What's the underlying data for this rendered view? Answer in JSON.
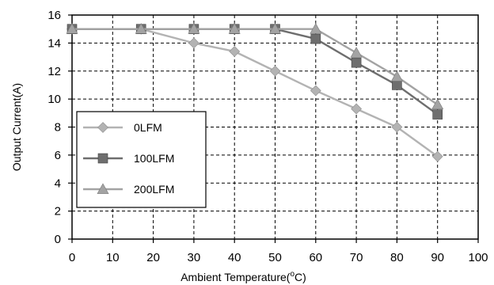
{
  "chart_data": {
    "type": "line",
    "xlabel": "Ambient Temperature(",
    "xlabel_sup": "o",
    "xlabel_suffix": "C)",
    "ylabel": "Output Current(A)",
    "xlim": [
      0,
      100
    ],
    "ylim": [
      0,
      16
    ],
    "x_ticks": [
      0,
      10,
      20,
      30,
      40,
      50,
      60,
      70,
      80,
      90,
      100
    ],
    "y_ticks": [
      0,
      2,
      4,
      6,
      8,
      10,
      12,
      14,
      16
    ],
    "grid": true,
    "grid_style": "dashed",
    "legend_position": "bottom-left",
    "series": [
      {
        "name": "0LFM",
        "marker": "diamond",
        "color": "#b3b3b3",
        "points": [
          [
            0,
            15
          ],
          [
            17,
            15
          ],
          [
            30,
            14
          ],
          [
            40,
            13.4
          ],
          [
            50,
            12
          ],
          [
            60,
            10.6
          ],
          [
            70,
            9.3
          ],
          [
            80,
            8
          ],
          [
            90,
            5.9
          ]
        ]
      },
      {
        "name": "100LFM",
        "marker": "square",
        "color": "#6e6e6e",
        "points": [
          [
            0,
            15
          ],
          [
            17,
            15
          ],
          [
            30,
            15
          ],
          [
            40,
            15
          ],
          [
            50,
            15
          ],
          [
            60,
            14.3
          ],
          [
            70,
            12.6
          ],
          [
            80,
            11
          ],
          [
            90,
            8.9
          ]
        ]
      },
      {
        "name": "200LFM",
        "marker": "triangle",
        "color": "#a3a3a3",
        "points": [
          [
            0,
            15
          ],
          [
            17,
            15
          ],
          [
            30,
            15
          ],
          [
            40,
            15
          ],
          [
            50,
            15
          ],
          [
            60,
            15
          ],
          [
            70,
            13.3
          ],
          [
            80,
            11.6
          ],
          [
            90,
            9.6
          ]
        ]
      }
    ]
  }
}
